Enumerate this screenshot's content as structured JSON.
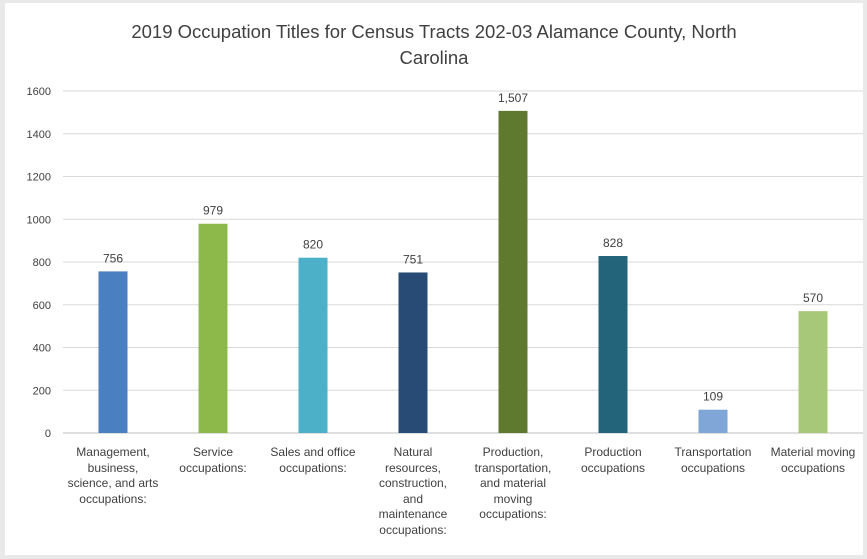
{
  "chart_data": {
    "type": "bar",
    "title_lines": [
      "2019 Occupation Titles for Census Tracts 202-03 Alamance County, North",
      "Carolina"
    ],
    "categories": [
      "Management, business, science, and arts occupations:",
      "Service occupations:",
      "Sales and office occupations:",
      "Natural resources, construction, and maintenance occupations:",
      "Production, transportation, and material moving occupations:",
      "Production occupations",
      "Transportation occupations",
      "Material moving occupations"
    ],
    "category_lines": [
      [
        "Management,",
        "business,",
        "science, and arts",
        "occupations:"
      ],
      [
        "Service",
        "occupations:"
      ],
      [
        "Sales and office",
        "occupations:"
      ],
      [
        "Natural",
        "resources,",
        "construction,",
        "and",
        "maintenance",
        "occupations:"
      ],
      [
        "Production,",
        "transportation,",
        "and material",
        "moving",
        "occupations:"
      ],
      [
        "Production",
        "occupations"
      ],
      [
        "Transportation",
        "occupations"
      ],
      [
        "Material moving",
        "occupations"
      ]
    ],
    "values": [
      756,
      979,
      820,
      751,
      1507,
      828,
      109,
      570
    ],
    "data_labels": [
      "756",
      "979",
      "820",
      "751",
      "1,507",
      "828",
      "109",
      "570"
    ],
    "bar_colors": [
      "#4a7fc1",
      "#8db84a",
      "#4bb0c8",
      "#284b75",
      "#5f7a2e",
      "#23647a",
      "#7fa6d6",
      "#a7c878"
    ],
    "ylim": [
      0,
      1600
    ],
    "y_ticks": [
      0,
      200,
      400,
      600,
      800,
      1000,
      1200,
      1400,
      1600
    ],
    "y_tick_labels": [
      "0",
      "200",
      "400",
      "600",
      "800",
      "1000",
      "1200",
      "1400",
      "1600"
    ],
    "grid": true,
    "gridline_color": "#d9d9d9",
    "legend": "none"
  }
}
